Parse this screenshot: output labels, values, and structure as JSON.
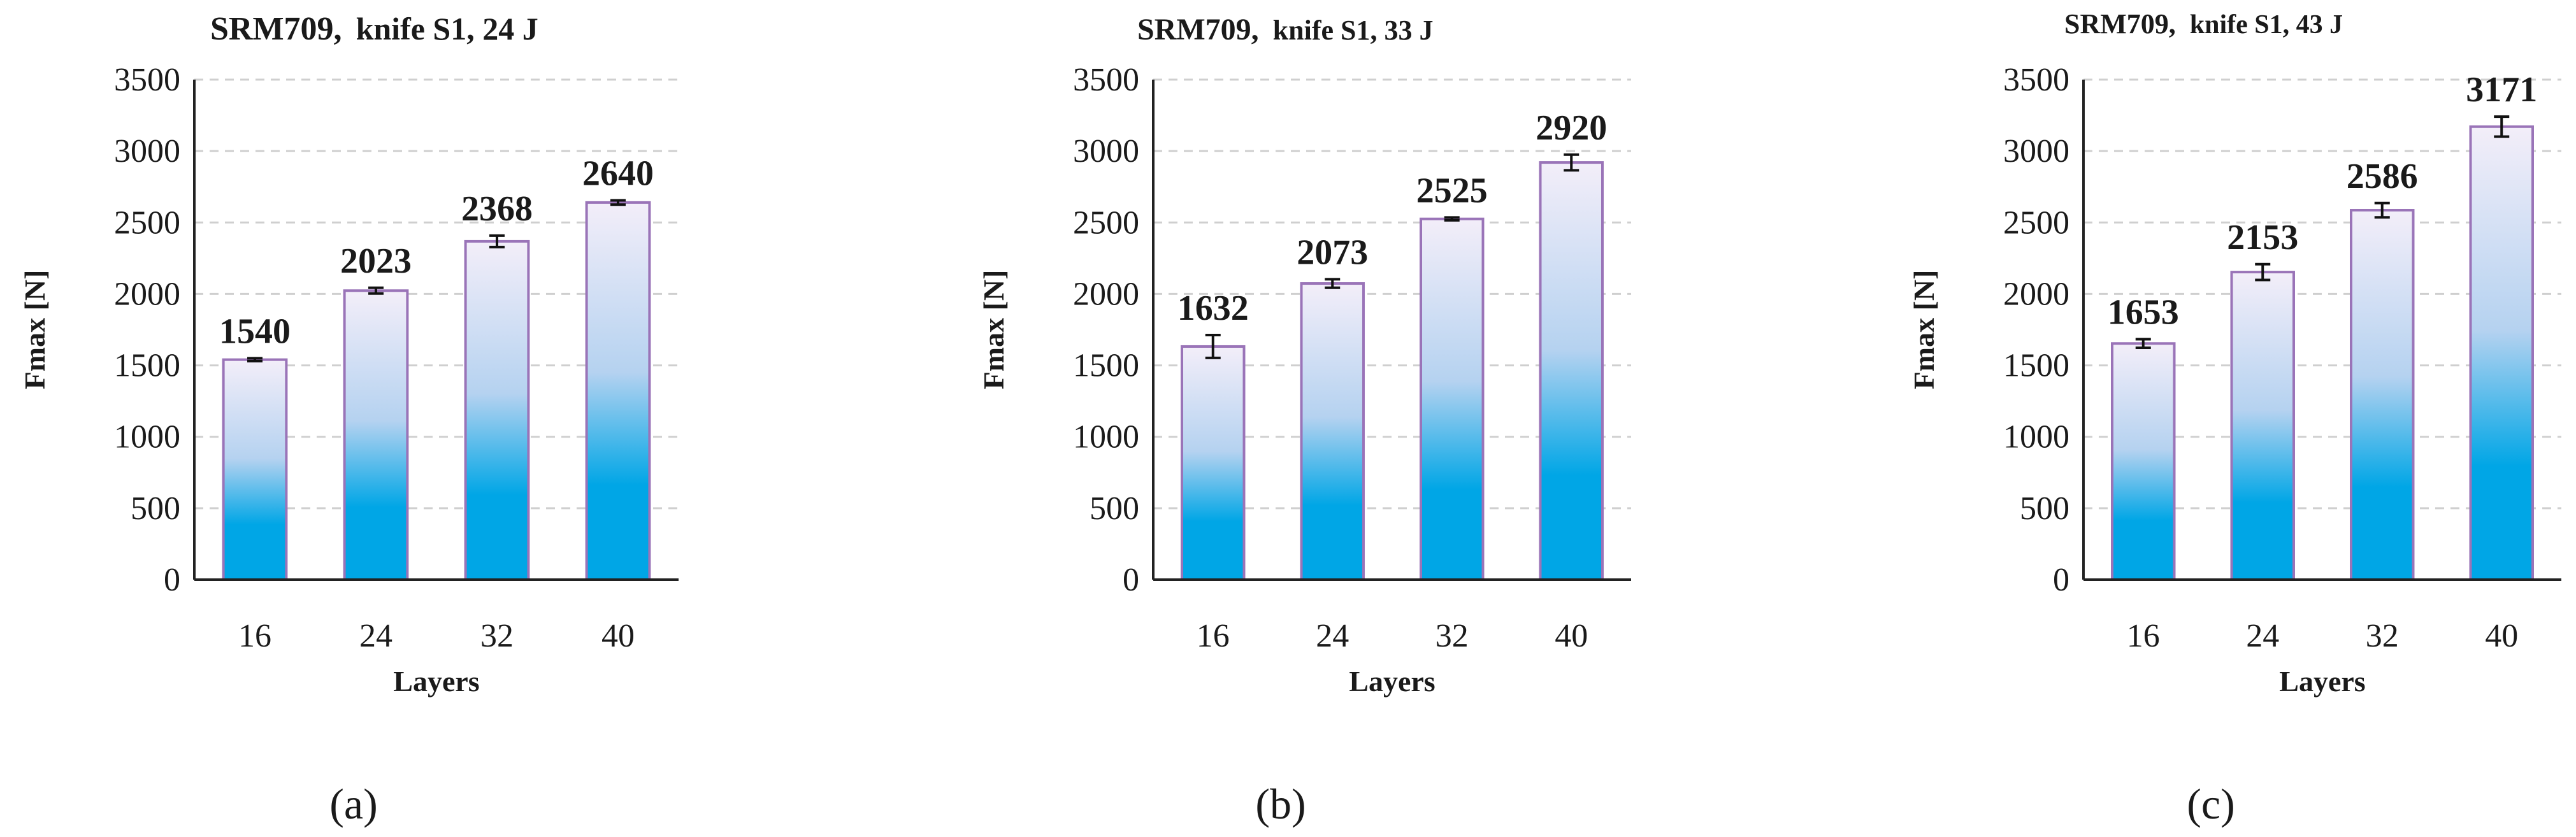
{
  "chart_data": [
    {
      "type": "bar",
      "panel_label": "(a)",
      "title_main": "SRM709,",
      "title_sub": "knife S1, 24 J",
      "xlabel": "Layers",
      "ylabel": "Fmax [N]",
      "categories": [
        "16",
        "24",
        "32",
        "40"
      ],
      "values": [
        1540,
        2023,
        2368,
        2640
      ],
      "errors": [
        10,
        20,
        40,
        15
      ],
      "ylim": [
        0,
        3500
      ],
      "yticks": [
        "0",
        "500",
        "1000",
        "1500",
        "2000",
        "2500",
        "3000",
        "3500"
      ],
      "grid": true
    },
    {
      "type": "bar",
      "panel_label": "(b)",
      "title_main": "SRM709,",
      "title_sub": "knife S1, 33 J",
      "xlabel": "Layers",
      "ylabel": "Fmax [N]",
      "categories": [
        "16",
        "24",
        "32",
        "40"
      ],
      "values": [
        1632,
        2073,
        2525,
        2920
      ],
      "errors": [
        80,
        30,
        10,
        55
      ],
      "ylim": [
        0,
        3500
      ],
      "yticks": [
        "0",
        "500",
        "1000",
        "1500",
        "2000",
        "2500",
        "3000",
        "3500"
      ],
      "grid": true
    },
    {
      "type": "bar",
      "panel_label": "(c)",
      "title_main": "SRM709,",
      "title_sub": "knife S1, 43 J",
      "xlabel": "Layers",
      "ylabel": "Fmax [N]",
      "categories": [
        "16",
        "24",
        "32",
        "40"
      ],
      "values": [
        1653,
        2153,
        2586,
        3171
      ],
      "errors": [
        30,
        55,
        50,
        70
      ],
      "ylim": [
        0,
        3500
      ],
      "yticks": [
        "0",
        "500",
        "1000",
        "1500",
        "2000",
        "2500",
        "3000",
        "3500"
      ],
      "grid": true
    }
  ],
  "colors": {
    "bar_top": "#f3eef9",
    "bar_mid": "#b5d2f0",
    "bar_bottom": "#00a6e6",
    "bar_outline": "#9a74b8",
    "grid": "#cfcfcf",
    "axis": "#222222"
  }
}
